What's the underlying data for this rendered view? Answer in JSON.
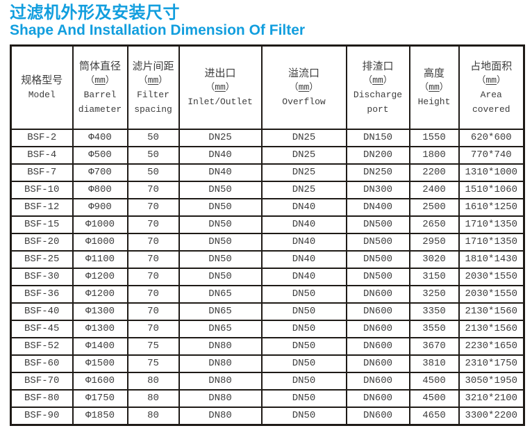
{
  "title": {
    "zh": "过滤机外形及安装尺寸",
    "en": "Shape And Installation Dimension Of Filter",
    "color": "#129EDE"
  },
  "table": {
    "unit_open": "（",
    "unit_close": "）",
    "columns": [
      {
        "zh": "规格型号",
        "unit": "",
        "en": "Model"
      },
      {
        "zh": "筒体直径",
        "unit": "mm",
        "en": "Barrel diameter"
      },
      {
        "zh": "滤片间距",
        "unit": "mm",
        "en": "Filter spacing"
      },
      {
        "zh": "进出口",
        "unit": "mm",
        "en": "Inlet/Outlet"
      },
      {
        "zh": "溢流口",
        "unit": "mm",
        "en": "Overflow"
      },
      {
        "zh": "排渣口",
        "unit": "mm",
        "en": "Discharge port"
      },
      {
        "zh": "高度",
        "unit": "mm",
        "en": "Height"
      },
      {
        "zh": "占地面积",
        "unit": "mm",
        "en": "Area covered"
      }
    ],
    "rows": [
      [
        "BSF-2",
        "Φ400",
        "50",
        "DN25",
        "DN25",
        "DN150",
        "1550",
        "620*600"
      ],
      [
        "BSF-4",
        "Φ500",
        "50",
        "DN40",
        "DN25",
        "DN200",
        "1800",
        "770*740"
      ],
      [
        "BSF-7",
        "Φ700",
        "50",
        "DN40",
        "DN25",
        "DN250",
        "2200",
        "1310*1000"
      ],
      [
        "BSF-10",
        "Φ800",
        "70",
        "DN50",
        "DN25",
        "DN300",
        "2400",
        "1510*1060"
      ],
      [
        "BSF-12",
        "Φ900",
        "70",
        "DN50",
        "DN40",
        "DN400",
        "2500",
        "1610*1250"
      ],
      [
        "BSF-15",
        "Φ1000",
        "70",
        "DN50",
        "DN40",
        "DN500",
        "2650",
        "1710*1350"
      ],
      [
        "BSF-20",
        "Φ1000",
        "70",
        "DN50",
        "DN40",
        "DN500",
        "2950",
        "1710*1350"
      ],
      [
        "BSF-25",
        "Φ1100",
        "70",
        "DN50",
        "DN40",
        "DN500",
        "3020",
        "1810*1430"
      ],
      [
        "BSF-30",
        "Φ1200",
        "70",
        "DN50",
        "DN40",
        "DN500",
        "3150",
        "2030*1550"
      ],
      [
        "BSF-36",
        "Φ1200",
        "70",
        "DN65",
        "DN50",
        "DN600",
        "3250",
        "2030*1550"
      ],
      [
        "BSF-40",
        "Φ1300",
        "70",
        "DN65",
        "DN50",
        "DN600",
        "3350",
        "2130*1560"
      ],
      [
        "BSF-45",
        "Φ1300",
        "70",
        "DN65",
        "DN50",
        "DN600",
        "3550",
        "2130*1560"
      ],
      [
        "BSF-52",
        "Φ1400",
        "75",
        "DN80",
        "DN50",
        "DN600",
        "3670",
        "2230*1650"
      ],
      [
        "BSF-60",
        "Φ1500",
        "75",
        "DN80",
        "DN50",
        "DN600",
        "3810",
        "2310*1750"
      ],
      [
        "BSF-70",
        "Φ1600",
        "80",
        "DN80",
        "DN50",
        "DN600",
        "4500",
        "3050*1950"
      ],
      [
        "BSF-80",
        "Φ1750",
        "80",
        "DN80",
        "DN50",
        "DN600",
        "4500",
        "3210*2100"
      ],
      [
        "BSF-90",
        "Φ1850",
        "80",
        "DN80",
        "DN50",
        "DN600",
        "4650",
        "3300*2200"
      ]
    ]
  }
}
